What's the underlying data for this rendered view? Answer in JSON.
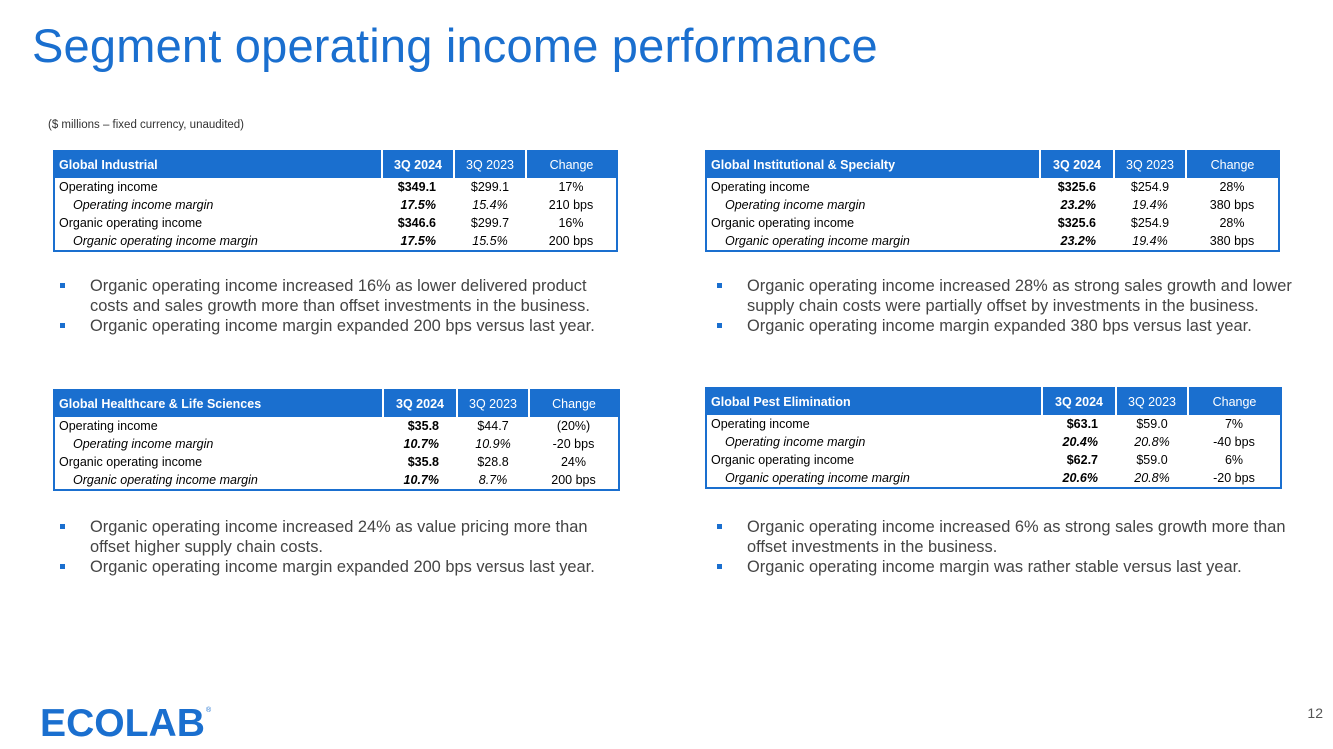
{
  "title": "Segment operating income performance",
  "subtitle": "($ millions – fixed currency, unaudited)",
  "colors": {
    "accent": "#1a6fcf",
    "text_body": "#444444"
  },
  "headers": {
    "current": "3Q 2024",
    "prior": "3Q 2023",
    "change": "Change"
  },
  "segments": [
    {
      "name": "Global Industrial",
      "rows": [
        {
          "label": "Operating income",
          "cur": "$349.1",
          "prev": "$299.1",
          "chg": "17%"
        },
        {
          "label": "Operating income margin",
          "cur": "17.5%",
          "prev": "15.4%",
          "chg": "210 bps"
        },
        {
          "label": "Organic operating income",
          "cur": "$346.6",
          "prev": "$299.7",
          "chg": "16%"
        },
        {
          "label": "Organic operating income margin",
          "cur": "17.5%",
          "prev": "15.5%",
          "chg": "200 bps"
        }
      ],
      "bullets": [
        "Organic operating income increased 16% as lower delivered product costs and sales growth more than offset investments in the business.",
        "Organic operating income margin expanded 200 bps versus last year."
      ]
    },
    {
      "name": "Global Institutional & Specialty",
      "rows": [
        {
          "label": "Operating income",
          "cur": "$325.6",
          "prev": "$254.9",
          "chg": "28%"
        },
        {
          "label": "Operating income margin",
          "cur": "23.2%",
          "prev": "19.4%",
          "chg": "380 bps"
        },
        {
          "label": "Organic operating income",
          "cur": "$325.6",
          "prev": "$254.9",
          "chg": "28%"
        },
        {
          "label": "Organic operating income margin",
          "cur": "23.2%",
          "prev": "19.4%",
          "chg": "380 bps"
        }
      ],
      "bullets": [
        "Organic operating income increased 28% as strong sales growth and lower supply chain costs were partially offset by investments in the business.",
        "Organic operating income margin expanded 380 bps versus last year."
      ]
    },
    {
      "name": "Global Healthcare & Life Sciences",
      "rows": [
        {
          "label": "Operating income",
          "cur": "$35.8",
          "prev": "$44.7",
          "chg": "(20%)"
        },
        {
          "label": "Operating income margin",
          "cur": "10.7%",
          "prev": "10.9%",
          "chg": "-20 bps"
        },
        {
          "label": "Organic operating income",
          "cur": "$35.8",
          "prev": "$28.8",
          "chg": "24%"
        },
        {
          "label": "Organic operating income margin",
          "cur": "10.7%",
          "prev": "8.7%",
          "chg": "200 bps"
        }
      ],
      "bullets": [
        "Organic operating income increased 24% as value pricing more than offset higher supply chain costs.",
        "Organic operating income margin expanded 200 bps versus last year."
      ]
    },
    {
      "name": "Global Pest Elimination",
      "rows": [
        {
          "label": "Operating income",
          "cur": "$63.1",
          "prev": "$59.0",
          "chg": "7%"
        },
        {
          "label": "Operating income margin",
          "cur": "20.4%",
          "prev": "20.8%",
          "chg": "-40 bps"
        },
        {
          "label": "Organic operating income",
          "cur": "$62.7",
          "prev": "$59.0",
          "chg": "6%"
        },
        {
          "label": "Organic operating income margin",
          "cur": "20.6%",
          "prev": "20.8%",
          "chg": "-20 bps"
        }
      ],
      "bullets": [
        "Organic operating income increased 6% as strong sales growth more than offset investments in the business.",
        "Organic operating income margin was rather stable versus last year."
      ]
    }
  ],
  "footer": {
    "logo_text": "ECOLAB",
    "page_number": "12"
  }
}
